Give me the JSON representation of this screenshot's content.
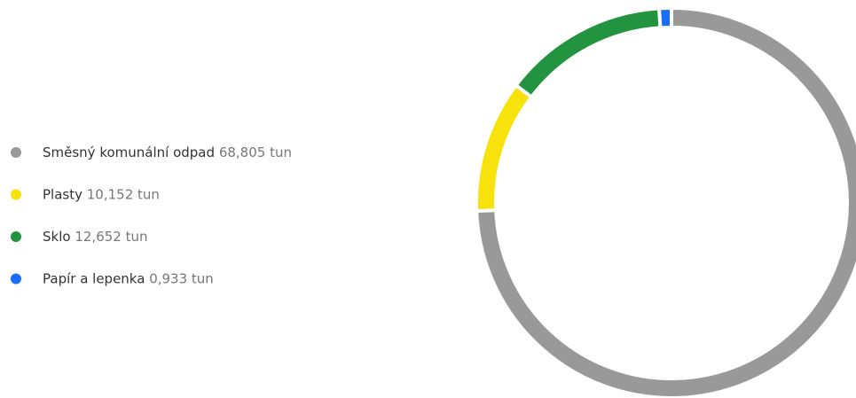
{
  "chart_data": {
    "type": "pie",
    "categories": [
      "Směsný komunální odpad",
      "Plasty",
      "Sklo",
      "Papír a lepenka"
    ],
    "values": [
      68.805,
      10.152,
      12.652,
      0.933
    ],
    "value_labels": [
      "68,805 tun",
      "10,152 tun",
      "12,652 tun",
      "0,933 tun"
    ],
    "colors": [
      "#999999",
      "#f7e20c",
      "#22943f",
      "#1a6ef5"
    ]
  }
}
